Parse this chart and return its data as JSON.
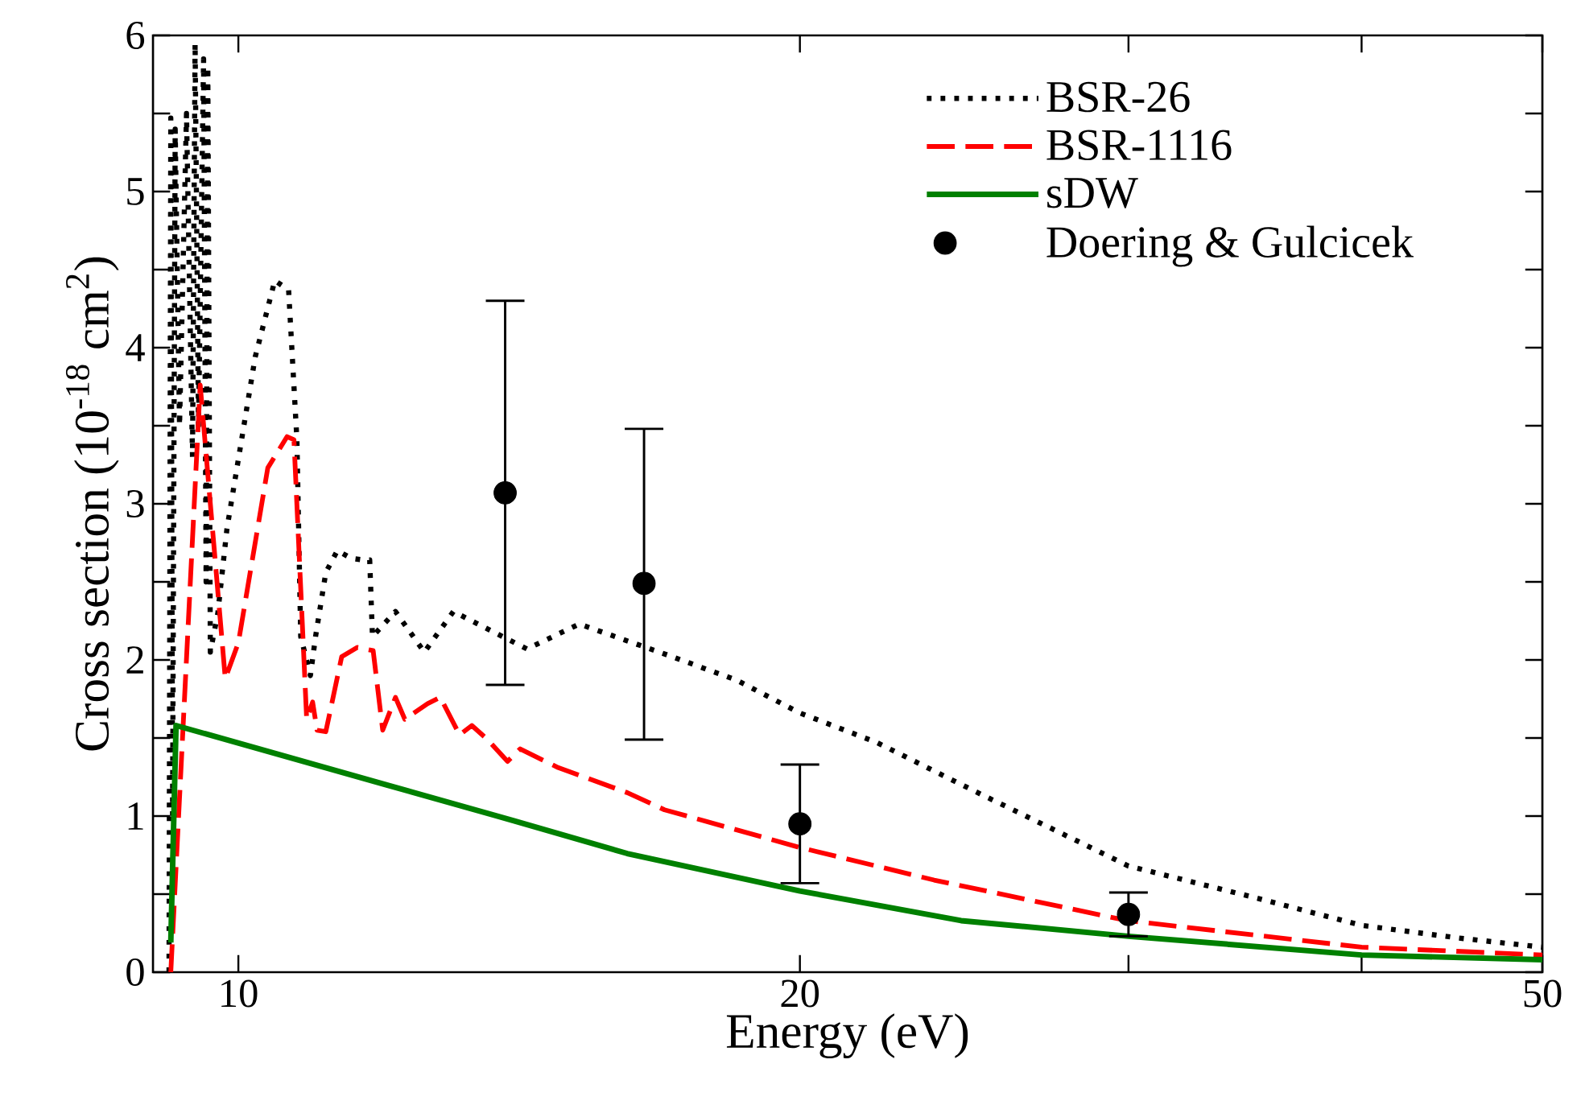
{
  "chart_data": {
    "type": "line",
    "xlabel": "Energy (eV)",
    "ylabel": "Cross section (10$^{-18}$ cm$^{2}$)",
    "log": "x",
    "legend": "top right",
    "xlim": [
      9,
      50
    ],
    "ylim": [
      0,
      6
    ],
    "xticks": [
      10,
      20,
      {
        "value": 30,
        "label": null
      },
      {
        "value": 40,
        "label": null
      },
      50
    ],
    "yticks": [
      0,
      {
        "value": 0.5,
        "label": null
      },
      1,
      {
        "value": 1.5,
        "label": null
      },
      2,
      {
        "value": 2.5,
        "label": null
      },
      3,
      {
        "value": 3.5,
        "label": null
      },
      4,
      {
        "value": 4.5,
        "label": null
      },
      5,
      {
        "value": 5.5,
        "label": null
      },
      6
    ],
    "series": [
      {
        "name": "BSR-26",
        "line_style": "dotted",
        "marker": "none",
        "color": "#000000",
        "x": [
          9.18,
          9.2,
          9.22,
          9.25,
          9.3,
          9.38,
          9.45,
          9.48,
          9.52,
          9.58,
          9.61,
          9.63,
          9.66,
          9.75,
          9.86,
          10.21,
          10.46,
          10.64,
          10.75,
          10.8,
          10.93,
          11.0,
          11.14,
          11.3,
          11.5,
          11.67,
          11.76,
          11.8,
          12.14,
          12.58,
          13.04,
          14.28,
          15.23,
          17,
          18.5,
          20,
          22,
          25,
          27.5,
          30,
          35,
          40,
          45,
          50
        ],
        "values": [
          0,
          5.47,
          1.0,
          5.4,
          3.5,
          5.5,
          3.3,
          5.95,
          3.5,
          5.85,
          2.5,
          5.8,
          2.05,
          2.3,
          2.84,
          3.94,
          4.43,
          4.37,
          3.41,
          2.15,
          1.9,
          2.15,
          2.56,
          2.7,
          2.65,
          2.64,
          2.64,
          2.15,
          2.31,
          2.05,
          2.31,
          2.07,
          2.23,
          2.03,
          1.87,
          1.66,
          1.47,
          1.14,
          0.9,
          0.68,
          0.48,
          0.3,
          0.22,
          0.16
        ]
      },
      {
        "name": "BSR-1116",
        "line_style": "dashed",
        "marker": "none",
        "color": "#ff0000",
        "x": [
          9.2,
          9.54,
          9.84,
          10.0,
          10.37,
          10.62,
          10.71,
          10.88,
          10.96,
          11.02,
          11.14,
          11.36,
          11.58,
          11.81,
          11.95,
          12.14,
          12.28,
          12.63,
          12.83,
          13.14,
          13.34,
          13.6,
          13.94,
          14.16,
          14.84,
          16.16,
          16.92,
          19.98,
          23.6,
          29.96,
          40,
          50
        ],
        "values": [
          0,
          3.76,
          1.88,
          2.11,
          3.23,
          3.43,
          3.41,
          1.62,
          1.73,
          1.55,
          1.54,
          2.02,
          2.08,
          2.06,
          1.55,
          1.76,
          1.62,
          1.72,
          1.76,
          1.52,
          1.58,
          1.49,
          1.35,
          1.43,
          1.31,
          1.15,
          1.04,
          0.8,
          0.59,
          0.33,
          0.16,
          0.11
        ]
      },
      {
        "name": "sDW",
        "line_style": "solid",
        "marker": "none",
        "color": "#008000",
        "x": [
          9.2,
          9.26,
          12,
          14.05,
          16.16,
          20,
          24.4,
          30,
          40,
          50
        ],
        "values": [
          0.19,
          1.58,
          1.2,
          0.97,
          0.76,
          0.52,
          0.33,
          0.23,
          0.11,
          0.08
        ]
      },
      {
        "name": "Doering & Gulcicek",
        "type": "scatter",
        "marker": "circle",
        "color": "#000000",
        "x": [
          13.9,
          16.5,
          20,
          30
        ],
        "values": [
          3.07,
          2.49,
          0.95,
          0.37
        ],
        "errors": [
          [
            1.84,
            4.3
          ],
          [
            1.49,
            3.48
          ],
          [
            0.57,
            1.33
          ],
          [
            0.23,
            0.51
          ]
        ]
      }
    ]
  }
}
